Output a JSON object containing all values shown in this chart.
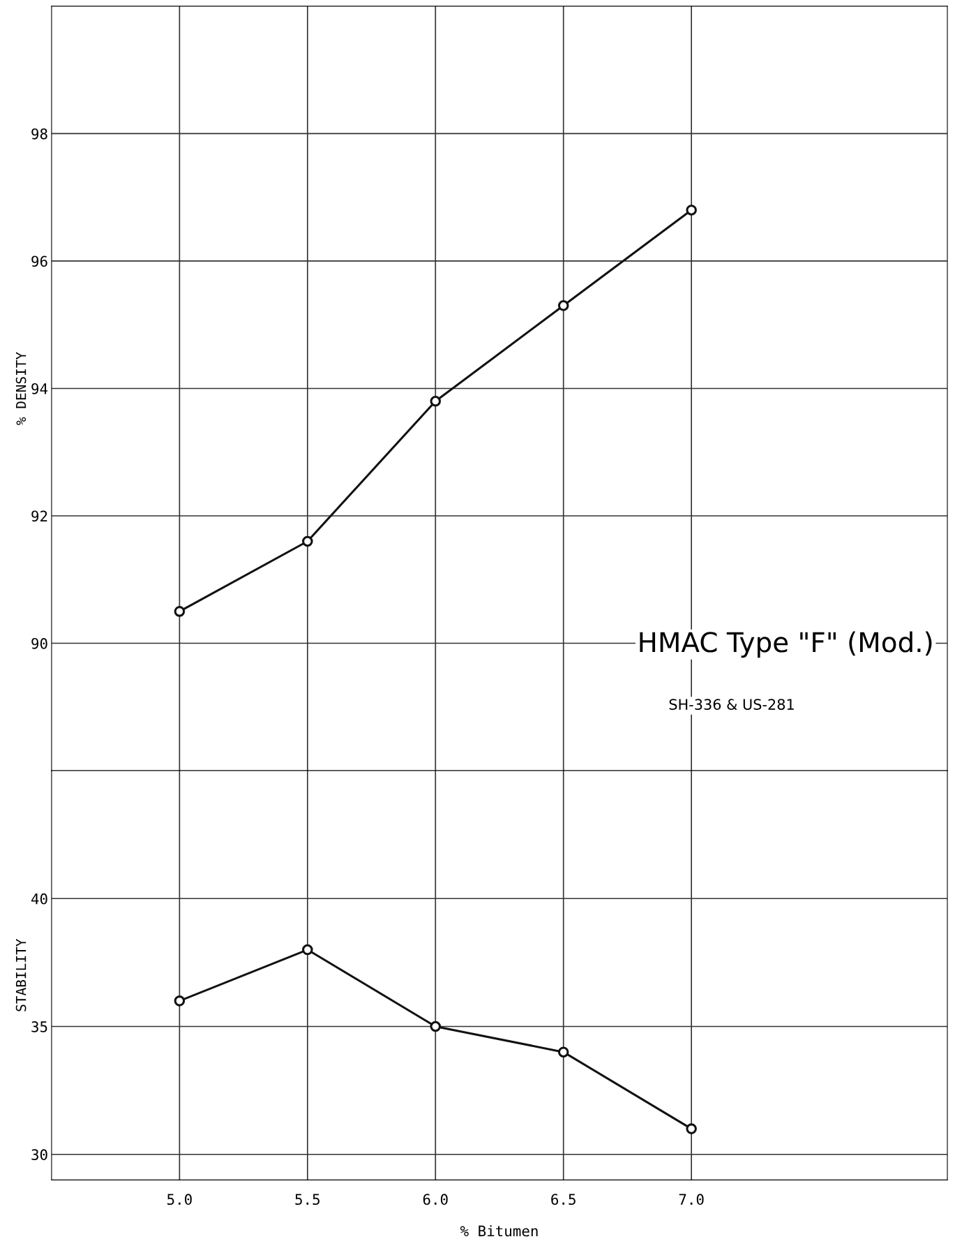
{
  "chart_data": [
    {
      "type": "line",
      "ylabel": "% DENSITY",
      "x": [
        5.0,
        5.5,
        6.0,
        6.5,
        7.0
      ],
      "series": [
        {
          "color": "#111111",
          "values": [
            90.5,
            91.6,
            93.8,
            95.3,
            96.8
          ]
        }
      ],
      "xlim": [
        4.5,
        8.0
      ],
      "ylim": [
        88,
        100
      ],
      "yticks": [
        90,
        92,
        94,
        96,
        98
      ],
      "xticks": [
        {
          "value": 5.0,
          "label": null
        },
        {
          "value": 5.5,
          "label": null
        },
        {
          "value": 6.0,
          "label": null
        },
        {
          "value": 6.5,
          "label": null
        },
        {
          "value": 7.0,
          "label": null
        }
      ],
      "tick_labels": "y",
      "grid": true,
      "marker": "circle",
      "line_style": "solid",
      "legend": false,
      "annotations": [
        "HMAC Type \"F\" (Mod.)",
        "SH-336 & US-281"
      ]
    },
    {
      "type": "line",
      "ylabel": "STABILITY",
      "xlabel": "% Bitumen",
      "x": [
        5.0,
        5.5,
        6.0,
        6.5,
        7.0
      ],
      "series": [
        {
          "color": "#111111",
          "values": [
            36.0,
            38.0,
            35.0,
            34.0,
            31.0
          ]
        }
      ],
      "xlim": [
        4.5,
        8.0
      ],
      "ylim": [
        29,
        45
      ],
      "yticks": [
        30,
        35,
        40
      ],
      "xticks": [
        {
          "value": 5.0,
          "label": "5.0"
        },
        {
          "value": 5.5,
          "label": "5.5"
        },
        {
          "value": 6.0,
          "label": "6.0"
        },
        {
          "value": 6.5,
          "label": "6.5"
        },
        {
          "value": 7.0,
          "label": "7.0"
        }
      ],
      "grid": true,
      "marker": "circle",
      "line_style": "solid",
      "legend": false
    }
  ]
}
